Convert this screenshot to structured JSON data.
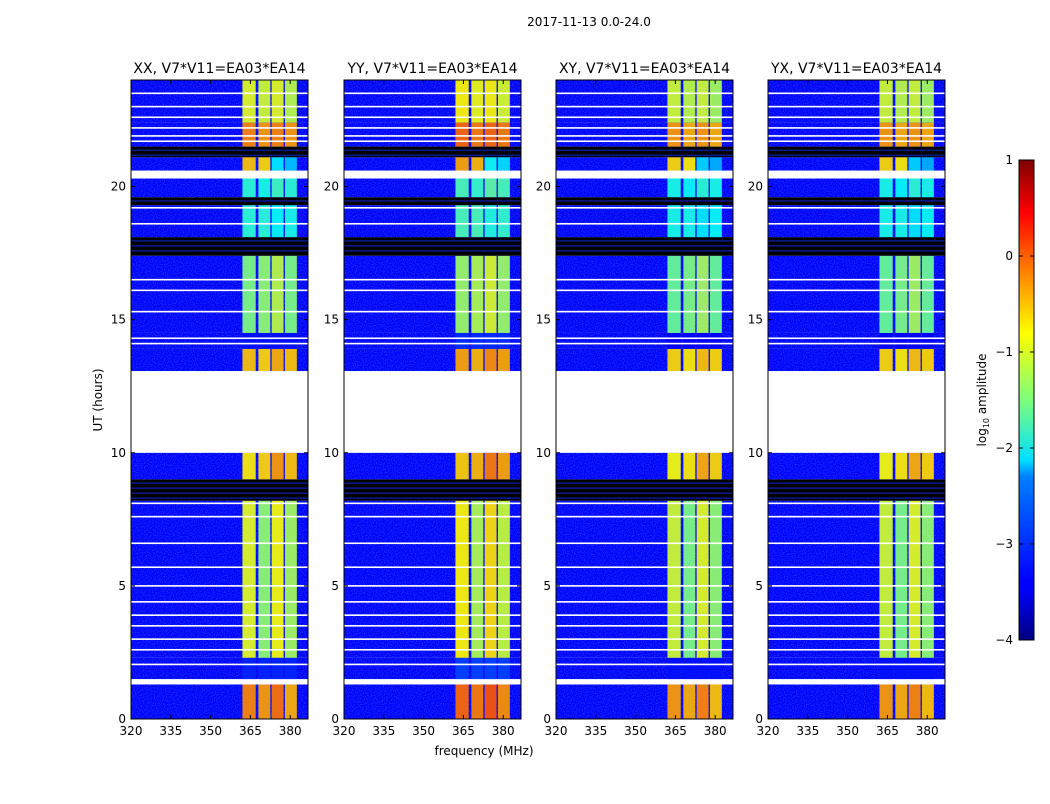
{
  "chart_data": {
    "type": "heatmap",
    "suptitle": "2017-11-13 0.0-24.0",
    "xlabel": "frequency (MHz)",
    "ylabel": "UT (hours)",
    "xlim": [
      320,
      386.7
    ],
    "ylim": [
      0,
      24
    ],
    "xticks": [
      "320",
      "335",
      "350",
      "365",
      "380"
    ],
    "xtick_values": [
      320,
      335,
      350,
      365,
      380
    ],
    "yticks": [
      "0",
      "5",
      "10",
      "15",
      "20"
    ],
    "ytick_values": [
      0,
      5,
      10,
      15,
      20
    ],
    "colorbar": {
      "label_prefix": "log",
      "label_sub": "10",
      "label_suffix": " amplitude",
      "range": [
        -4,
        1
      ],
      "ticks": [
        "1",
        "0",
        "−1",
        "−2",
        "−3",
        "−4"
      ],
      "tick_values": [
        1,
        0,
        -1,
        -2,
        -3,
        -4
      ],
      "colormap": "jet"
    },
    "background_level": -3.4,
    "bands_mhz": [
      [
        362,
        367
      ],
      [
        368,
        372.5
      ],
      [
        373,
        377.5
      ],
      [
        378,
        382.5
      ]
    ],
    "panels": [
      {
        "title": "XX, V7*V11=EA03*EA14",
        "band_offset": 0
      },
      {
        "title": "YY, V7*V11=EA03*EA14",
        "band_offset": 0.15
      },
      {
        "title": "XY, V7*V11=EA03*EA14",
        "band_offset": -0.1
      },
      {
        "title": "YX, V7*V11=EA03*EA14",
        "band_offset": -0.1
      }
    ],
    "segments": [
      {
        "t": [
          0,
          1.3
        ],
        "kind": "data",
        "band_levels": [
          -0.3,
          -0.4,
          -0.2,
          -0.5
        ]
      },
      {
        "t": [
          1.3,
          1.5
        ],
        "kind": "flagged"
      },
      {
        "t": [
          1.5,
          2.3
        ],
        "kind": "data",
        "band_levels": [
          -3.2,
          -3.2,
          -3.2,
          -3.2
        ]
      },
      {
        "t": [
          2.3,
          8.2
        ],
        "kind": "data",
        "band_levels": [
          -1.0,
          -1.4,
          -0.9,
          -1.3
        ]
      },
      {
        "t": [
          8.2,
          9.0
        ],
        "kind": "blank"
      },
      {
        "t": [
          9.0,
          10.0
        ],
        "kind": "data",
        "band_levels": [
          -0.8,
          -0.7,
          -0.4,
          -0.6
        ]
      },
      {
        "t": [
          10.0,
          13.07
        ],
        "kind": "flagged"
      },
      {
        "t": [
          13.07,
          13.9
        ],
        "kind": "data",
        "band_levels": [
          -0.6,
          -0.7,
          -0.5,
          -0.6
        ]
      },
      {
        "t": [
          13.9,
          14.5
        ],
        "kind": "data",
        "band_levels": [
          -3.3,
          -3.3,
          -3.3,
          -3.3
        ]
      },
      {
        "t": [
          14.5,
          17.4
        ],
        "kind": "data",
        "band_levels": [
          -1.5,
          -1.4,
          -1.2,
          -1.5
        ]
      },
      {
        "t": [
          17.4,
          18.1
        ],
        "kind": "blank"
      },
      {
        "t": [
          18.1,
          19.3
        ],
        "kind": "data",
        "band_levels": [
          -1.9,
          -1.9,
          -2.1,
          -2.0
        ]
      },
      {
        "t": [
          19.3,
          19.6
        ],
        "kind": "blank"
      },
      {
        "t": [
          19.6,
          20.3
        ],
        "kind": "data",
        "band_levels": [
          -1.9,
          -2.0,
          -1.8,
          -1.9
        ]
      },
      {
        "t": [
          20.3,
          20.6
        ],
        "kind": "flagged"
      },
      {
        "t": [
          20.6,
          21.1
        ],
        "kind": "data",
        "band_levels": [
          -0.6,
          -0.7,
          -2.2,
          -2.4
        ]
      },
      {
        "t": [
          21.1,
          21.5
        ],
        "kind": "blank"
      },
      {
        "t": [
          21.5,
          22.4
        ],
        "kind": "data",
        "band_levels": [
          -0.3,
          -0.4,
          -0.3,
          -0.4
        ]
      },
      {
        "t": [
          22.4,
          24.0
        ],
        "kind": "data",
        "band_levels": [
          -1.0,
          -1.1,
          -1.0,
          -1.2
        ]
      }
    ],
    "flagged_lines_hours": [
      2.05,
      2.6,
      3.0,
      3.5,
      3.9,
      4.4,
      5.0,
      5.7,
      6.6,
      7.6,
      8.1,
      11.0,
      14.1,
      14.3,
      15.3,
      16.1,
      16.5,
      18.6,
      19.2,
      21.7,
      21.9,
      22.2,
      22.6,
      23.0,
      23.5
    ]
  }
}
